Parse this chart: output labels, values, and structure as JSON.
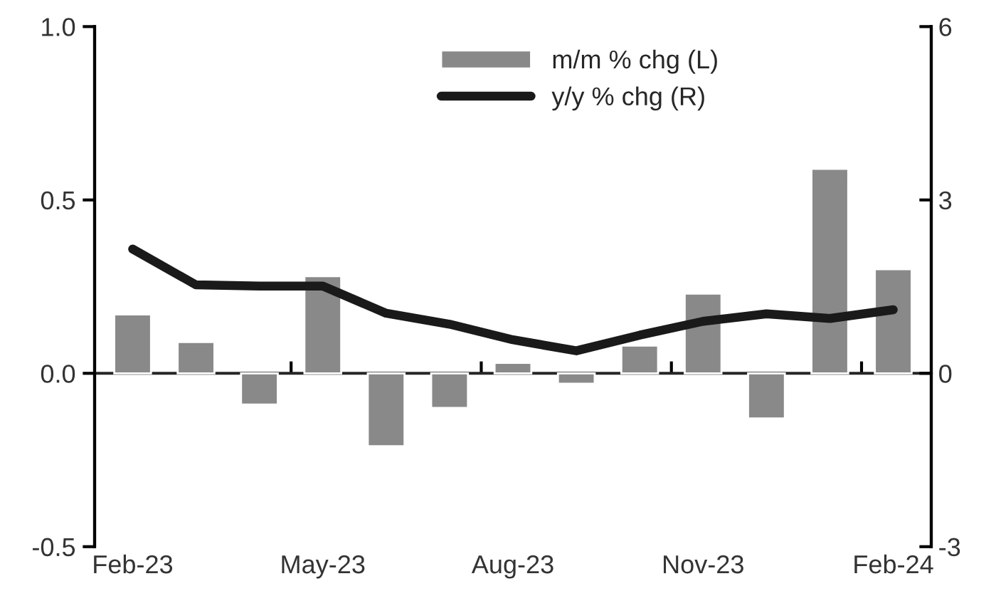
{
  "chart_data": {
    "type": "bar",
    "categories": [
      "Feb-23",
      null,
      null,
      "May-23",
      null,
      null,
      "Aug-23",
      null,
      null,
      "Nov-23",
      null,
      null,
      "Feb-24"
    ],
    "series": [
      {
        "name": "m/m % chg (L)",
        "color": "#898989",
        "values": [
          0.17,
          0.09,
          -0.09,
          0.28,
          -0.21,
          -0.1,
          0.03,
          -0.03,
          0.08,
          0.23,
          -0.13,
          0.59,
          0.3
        ]
      },
      {
        "name": "y/y % chg (R)",
        "type": "line",
        "axis": "y2",
        "color": "#1a1a1a",
        "values": [
          2.15,
          1.53,
          1.51,
          1.51,
          1.04,
          0.85,
          0.58,
          0.39,
          0.66,
          0.9,
          1.03,
          0.95,
          1.1
        ]
      }
    ],
    "ylim": [
      -0.5,
      1.0
    ],
    "yticks": [
      {
        "value": -0.5,
        "label": "-0.5"
      },
      {
        "value": 0,
        "label": "0.0"
      },
      {
        "value": 0.5,
        "label": "0.5"
      },
      {
        "value": 1.0,
        "label": "1.0"
      }
    ],
    "y2lim": [
      -3,
      6
    ],
    "y2ticks": [
      -3,
      0,
      3,
      6
    ],
    "legend": "top",
    "marker": "none",
    "line_style": "solid"
  }
}
